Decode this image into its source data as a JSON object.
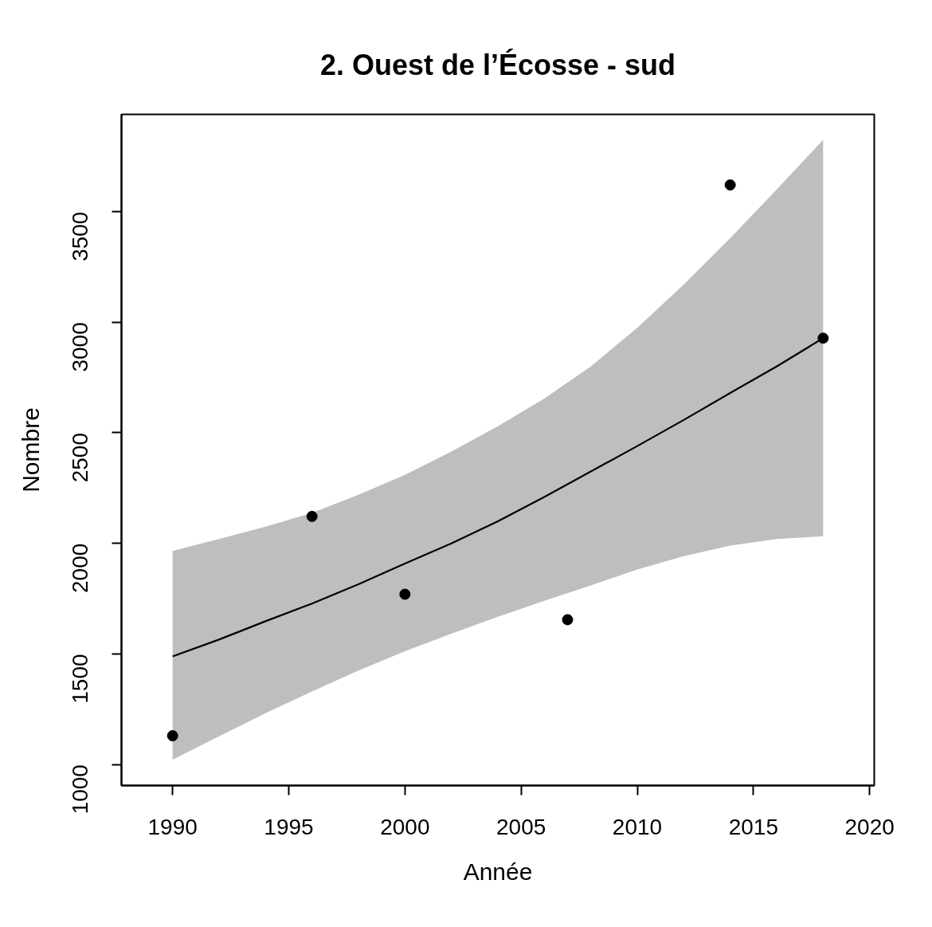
{
  "chart_data": {
    "type": "scatter",
    "title": "2. Ouest de l’Écosse - sud",
    "xlabel": "Année",
    "ylabel": "Nombre",
    "x": [
      1990,
      1996,
      2000,
      2007,
      2014,
      2018
    ],
    "series": [
      {
        "color": "#000000",
        "marker": "circle",
        "values": [
          1130,
          2122,
          1770,
          1655,
          3621,
          2928
        ]
      },
      {
        "type": "line",
        "color": "#000000",
        "x": [
          1990,
          1992,
          1994,
          1996,
          1998,
          2000,
          2002,
          2004,
          2006,
          2008,
          2010,
          2012,
          2014,
          2016,
          2018
        ],
        "values": [
          1489,
          1565,
          1648,
          1728,
          1815,
          1909,
          2000,
          2100,
          2210,
          2325,
          2440,
          2558,
          2680,
          2800,
          2928
        ],
        "lower": [
          1022,
          1128,
          1232,
          1330,
          1425,
          1512,
          1592,
          1668,
          1740,
          1810,
          1882,
          1942,
          1990,
          2020,
          2032
        ],
        "upper": [
          1966,
          2020,
          2076,
          2138,
          2220,
          2310,
          2415,
          2530,
          2655,
          2800,
          2975,
          3170,
          3380,
          3600,
          3825
        ]
      }
    ],
    "line_style": "solid",
    "xlim": [
      1987.8,
      2020.2
    ],
    "ylim": [
      905,
      3940
    ],
    "xticks": [
      1990,
      1995,
      2000,
      2005,
      2010,
      2015,
      2020
    ],
    "yticks": [
      1000,
      1500,
      2000,
      2500,
      3000,
      3500
    ]
  }
}
